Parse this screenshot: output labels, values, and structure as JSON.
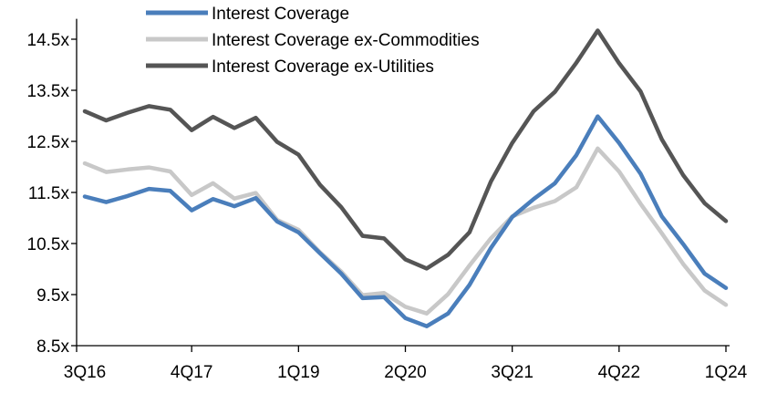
{
  "chart_data": {
    "type": "line",
    "title": "",
    "xlabel": "",
    "ylabel": "",
    "ylim": [
      8.5,
      14.9
    ],
    "grid": false,
    "legend_position": "top-center",
    "y_ticks": [
      {
        "value": 8.5,
        "label": "8.5x"
      },
      {
        "value": 9.5,
        "label": "9.5x"
      },
      {
        "value": 10.5,
        "label": "10.5x"
      },
      {
        "value": 11.5,
        "label": "11.5x"
      },
      {
        "value": 12.5,
        "label": "12.5x"
      },
      {
        "value": 13.5,
        "label": "13.5x"
      },
      {
        "value": 14.5,
        "label": "14.5x"
      }
    ],
    "x": [
      "3Q16",
      "4Q16",
      "1Q17",
      "2Q17",
      "3Q17",
      "4Q17",
      "1Q18",
      "2Q18",
      "3Q18",
      "4Q18",
      "1Q19",
      "2Q19",
      "3Q19",
      "4Q19",
      "1Q20",
      "2Q20",
      "3Q20",
      "4Q20",
      "1Q21",
      "2Q21",
      "3Q21",
      "4Q21",
      "1Q22",
      "2Q22",
      "3Q22",
      "4Q22",
      "1Q23",
      "2Q23",
      "3Q23",
      "4Q23",
      "1Q24"
    ],
    "x_tick_labels": [
      {
        "index": 0,
        "label": "3Q16"
      },
      {
        "index": 5,
        "label": "4Q17"
      },
      {
        "index": 10,
        "label": "1Q19"
      },
      {
        "index": 15,
        "label": "2Q20"
      },
      {
        "index": 20,
        "label": "3Q21"
      },
      {
        "index": 25,
        "label": "4Q22"
      },
      {
        "index": 30,
        "label": "1Q24"
      }
    ],
    "series": [
      {
        "name": "Interest Coverage",
        "color": "#4a7ebb",
        "values": [
          11.42,
          11.31,
          11.43,
          11.57,
          11.53,
          11.15,
          11.37,
          11.23,
          11.39,
          10.93,
          10.72,
          10.31,
          9.91,
          9.43,
          9.45,
          9.04,
          8.88,
          9.13,
          9.69,
          10.41,
          11.02,
          11.37,
          11.68,
          12.23,
          12.99,
          12.47,
          11.87,
          11.03,
          10.49,
          9.91,
          9.63
        ]
      },
      {
        "name": "Interest Coverage ex-Commodities",
        "color": "#c8c8c8",
        "values": [
          12.07,
          11.9,
          11.95,
          11.99,
          11.91,
          11.45,
          11.68,
          11.38,
          11.49,
          10.96,
          10.77,
          10.33,
          9.95,
          9.49,
          9.53,
          9.26,
          9.13,
          9.51,
          10.07,
          10.6,
          11.03,
          11.2,
          11.33,
          11.6,
          12.36,
          11.91,
          11.28,
          10.7,
          10.1,
          9.58,
          9.3
        ]
      },
      {
        "name": "Interest Coverage ex-Utilities",
        "color": "#555555",
        "values": [
          13.09,
          12.91,
          13.06,
          13.19,
          13.12,
          12.72,
          12.98,
          12.76,
          12.96,
          12.49,
          12.24,
          11.65,
          11.21,
          10.65,
          10.6,
          10.19,
          10.01,
          10.28,
          10.72,
          11.71,
          12.47,
          13.09,
          13.47,
          14.04,
          14.67,
          14.03,
          13.48,
          12.54,
          11.84,
          11.29,
          10.94
        ]
      }
    ]
  }
}
